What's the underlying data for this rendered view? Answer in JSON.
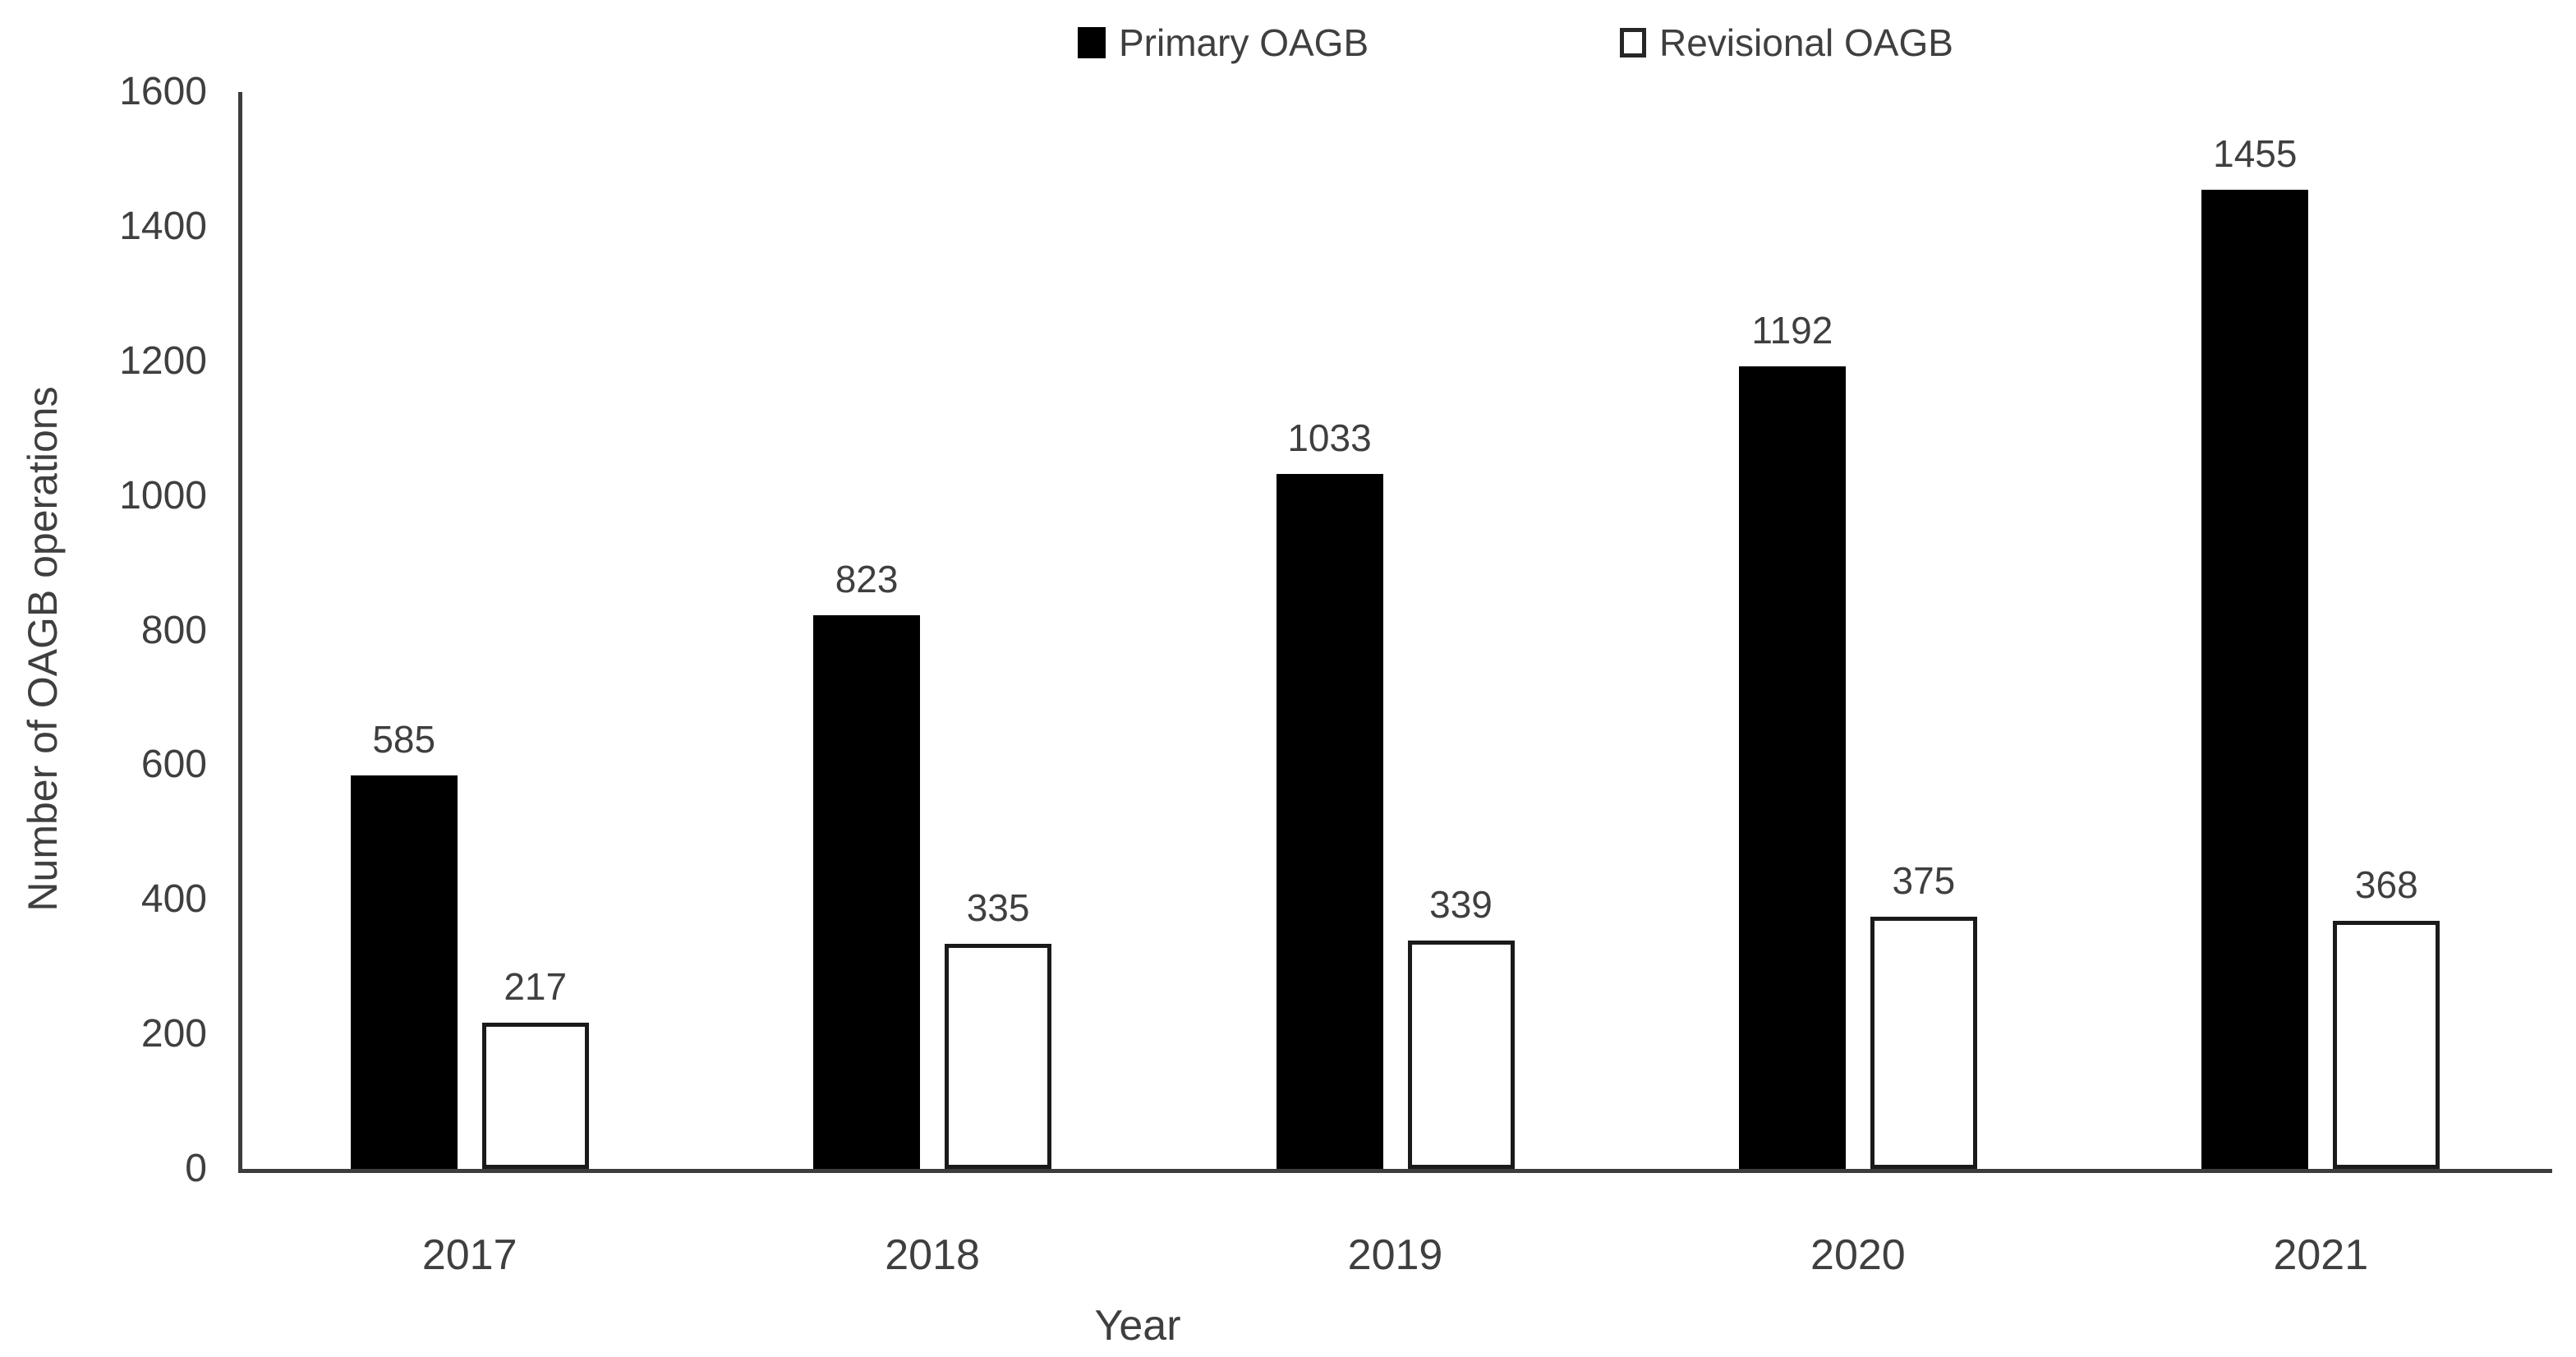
{
  "chart_data": {
    "type": "bar",
    "title": "",
    "categories": [
      "2017",
      "2018",
      "2019",
      "2020",
      "2021"
    ],
    "series": [
      {
        "name": "Primary OAGB",
        "values": [
          585,
          823,
          1033,
          1192,
          1455
        ],
        "fill": "#000000",
        "marker": "filled-square"
      },
      {
        "name": "Revisional OAGB",
        "values": [
          217,
          335,
          339,
          375,
          368
        ],
        "fill": "#ffffff",
        "border": "#1a1a1a",
        "marker": "hollow-square"
      }
    ],
    "data_labels": [
      [
        "585",
        "823",
        "1033",
        "1192",
        "1455"
      ],
      [
        "217",
        "335",
        "339",
        "375",
        "368"
      ]
    ],
    "xlabel": "Year",
    "ylabel": "Number of OAGB operations",
    "ylim": [
      0,
      1600
    ],
    "ytick_step": 200,
    "y_ticks": [
      "0",
      "200",
      "400",
      "600",
      "800",
      "1000",
      "1200",
      "1400",
      "1600"
    ],
    "legend_position": "top",
    "grid": false,
    "text_color": "#3f3f3f",
    "axis_color": "#3d3d3d"
  }
}
